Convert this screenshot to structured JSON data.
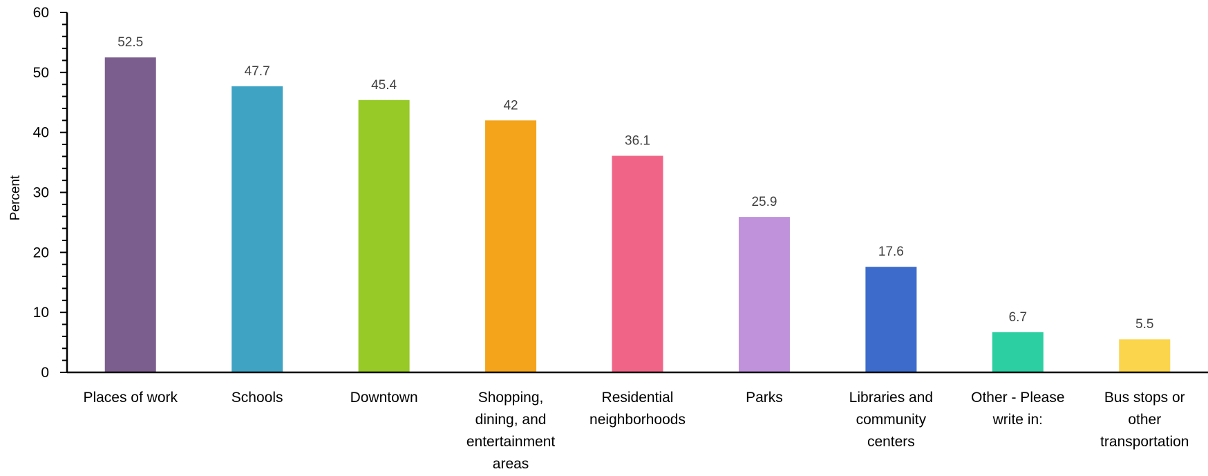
{
  "chart_data": {
    "type": "bar",
    "title": "",
    "xlabel": "",
    "ylabel": "Percent",
    "ylim": [
      0,
      60
    ],
    "yticks": [
      "0",
      "10",
      "20",
      "30",
      "40",
      "50",
      "60"
    ],
    "grid": false,
    "legend": "none",
    "categories": [
      [
        "Places of work"
      ],
      [
        "Schools"
      ],
      [
        "Downtown"
      ],
      [
        "Shopping,",
        "dining, and",
        "entertainment",
        "areas"
      ],
      [
        "Residential",
        "neighborhoods"
      ],
      [
        "Parks"
      ],
      [
        "Libraries and",
        "community",
        "centers"
      ],
      [
        "Other - Please",
        "write in:"
      ],
      [
        "Bus stops or",
        "other",
        "transportation"
      ]
    ],
    "values": [
      52.5,
      47.7,
      45.4,
      42,
      36.1,
      25.9,
      17.6,
      6.7,
      5.5
    ],
    "data_labels": [
      "52.5",
      "47.7",
      "45.4",
      "42",
      "36.1",
      "25.9",
      "17.6",
      "6.7",
      "5.5"
    ],
    "colors": [
      "#7B5E8E",
      "#3FA3C3",
      "#97C927",
      "#F4A41A",
      "#F06587",
      "#BF92DB",
      "#3C6BCB",
      "#2BCFA2",
      "#FBD54B"
    ]
  }
}
